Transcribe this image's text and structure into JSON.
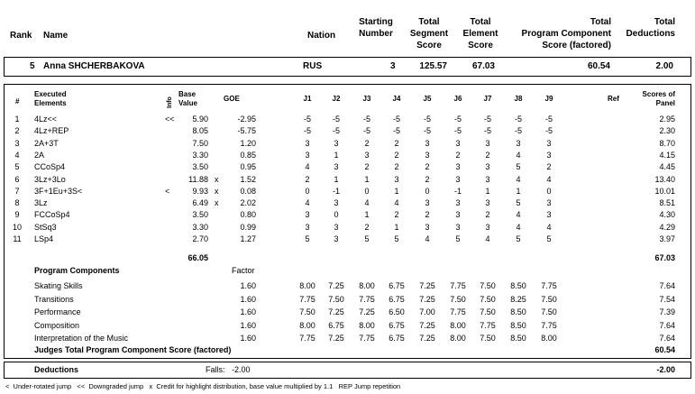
{
  "header": {
    "rank": "Rank",
    "name": "Name",
    "nation": "Nation",
    "starting_number": [
      "Starting",
      "Number"
    ],
    "tss": [
      "Total",
      "Segment",
      "Score"
    ],
    "tes": [
      "Total",
      "Element",
      "Score"
    ],
    "pcs": [
      "Total",
      "Program Component",
      "Score (factored)"
    ],
    "ded": [
      "Total",
      "Deductions"
    ]
  },
  "skater": {
    "rank": "5",
    "name": "Anna SHCHERBAKOVA",
    "nation": "RUS",
    "start": "3",
    "tss": "125.57",
    "tes": "67.03",
    "pcs": "60.54",
    "ded": "2.00"
  },
  "elements_header": {
    "num": "#",
    "exec": [
      "Executed",
      "Elements"
    ],
    "info": "Info",
    "bv": [
      "Base",
      "Value"
    ],
    "goe": "GOE",
    "judges": [
      "J1",
      "J2",
      "J3",
      "J4",
      "J5",
      "J6",
      "J7",
      "J8",
      "J9"
    ],
    "ref": "Ref",
    "panel": [
      "Scores of",
      "Panel"
    ]
  },
  "elements": [
    {
      "n": "1",
      "el": "4Lz<<",
      "info": "<<",
      "bv": "5.90",
      "x": "",
      "goe": "-2.95",
      "j": [
        "-5",
        "-5",
        "-5",
        "-5",
        "-5",
        "-5",
        "-5",
        "-5",
        "-5"
      ],
      "score": "2.95"
    },
    {
      "n": "2",
      "el": "4Lz+REP",
      "info": "",
      "bv": "8.05",
      "x": "",
      "goe": "-5.75",
      "j": [
        "-5",
        "-5",
        "-5",
        "-5",
        "-5",
        "-5",
        "-5",
        "-5",
        "-5"
      ],
      "score": "2.30"
    },
    {
      "n": "3",
      "el": "2A+3T",
      "info": "",
      "bv": "7.50",
      "x": "",
      "goe": "1.20",
      "j": [
        "3",
        "3",
        "2",
        "2",
        "3",
        "3",
        "3",
        "3",
        "3"
      ],
      "score": "8.70"
    },
    {
      "n": "4",
      "el": "2A",
      "info": "",
      "bv": "3.30",
      "x": "",
      "goe": "0.85",
      "j": [
        "3",
        "1",
        "3",
        "2",
        "3",
        "2",
        "2",
        "4",
        "3"
      ],
      "score": "4.15"
    },
    {
      "n": "5",
      "el": "CCoSp4",
      "info": "",
      "bv": "3.50",
      "x": "",
      "goe": "0.95",
      "j": [
        "4",
        "3",
        "2",
        "2",
        "2",
        "3",
        "3",
        "5",
        "2"
      ],
      "score": "4.45"
    },
    {
      "n": "6",
      "el": "3Lz+3Lo",
      "info": "",
      "bv": "11.88",
      "x": "x",
      "goe": "1.52",
      "j": [
        "2",
        "1",
        "1",
        "3",
        "2",
        "3",
        "3",
        "4",
        "4"
      ],
      "score": "13.40"
    },
    {
      "n": "7",
      "el": "3F+1Eu+3S<",
      "info": "<",
      "bv": "9.93",
      "x": "x",
      "goe": "0.08",
      "j": [
        "0",
        "-1",
        "0",
        "1",
        "0",
        "-1",
        "1",
        "1",
        "0"
      ],
      "score": "10.01"
    },
    {
      "n": "8",
      "el": "3Lz",
      "info": "",
      "bv": "6.49",
      "x": "x",
      "goe": "2.02",
      "j": [
        "4",
        "3",
        "4",
        "4",
        "3",
        "3",
        "3",
        "5",
        "3"
      ],
      "score": "8.51"
    },
    {
      "n": "9",
      "el": "FCCoSp4",
      "info": "",
      "bv": "3.50",
      "x": "",
      "goe": "0.80",
      "j": [
        "3",
        "0",
        "1",
        "2",
        "2",
        "3",
        "2",
        "4",
        "3"
      ],
      "score": "4.30"
    },
    {
      "n": "10",
      "el": "StSq3",
      "info": "",
      "bv": "3.30",
      "x": "",
      "goe": "0.99",
      "j": [
        "3",
        "3",
        "2",
        "1",
        "3",
        "3",
        "3",
        "4",
        "4"
      ],
      "score": "4.29"
    },
    {
      "n": "11",
      "el": "LSp4",
      "info": "",
      "bv": "2.70",
      "x": "",
      "goe": "1.27",
      "j": [
        "5",
        "3",
        "5",
        "5",
        "4",
        "5",
        "4",
        "5",
        "5"
      ],
      "score": "3.97"
    }
  ],
  "totals": {
    "bv": "66.05",
    "score": "67.03"
  },
  "pc_header": {
    "title": "Program Components",
    "factor": "Factor"
  },
  "components": [
    {
      "name": "Skating Skills",
      "factor": "1.60",
      "j": [
        "8.00",
        "7.25",
        "8.00",
        "6.75",
        "7.25",
        "7.75",
        "7.50",
        "8.50",
        "7.75"
      ],
      "score": "7.64"
    },
    {
      "name": "Transitions",
      "factor": "1.60",
      "j": [
        "7.75",
        "7.50",
        "7.75",
        "6.75",
        "7.25",
        "7.50",
        "7.50",
        "8.25",
        "7.50"
      ],
      "score": "7.54"
    },
    {
      "name": "Performance",
      "factor": "1.60",
      "j": [
        "7.50",
        "7.25",
        "7.25",
        "6.50",
        "7.00",
        "7.75",
        "7.50",
        "8.50",
        "7.50"
      ],
      "score": "7.39"
    },
    {
      "name": "Composition",
      "factor": "1.60",
      "j": [
        "8.00",
        "6.75",
        "8.00",
        "6.75",
        "7.25",
        "8.00",
        "7.75",
        "8.50",
        "7.75"
      ],
      "score": "7.64"
    },
    {
      "name": "Interpretation of the Music",
      "factor": "1.60",
      "j": [
        "7.75",
        "7.25",
        "7.75",
        "6.75",
        "7.25",
        "8.00",
        "7.50",
        "8.50",
        "8.00"
      ],
      "score": "7.64"
    }
  ],
  "pcs_total": {
    "label": "Judges Total Program Component Score (factored)",
    "score": "60.54"
  },
  "deductions": {
    "label": "Deductions",
    "falls_label": "Falls:",
    "falls_value": "-2.00",
    "total": "-2.00"
  },
  "legend": "<  Under-rotated jump   <<  Downgraded jump   x  Credit for highlight distribution, base value multiplied by 1.1   REP Jump repetition"
}
